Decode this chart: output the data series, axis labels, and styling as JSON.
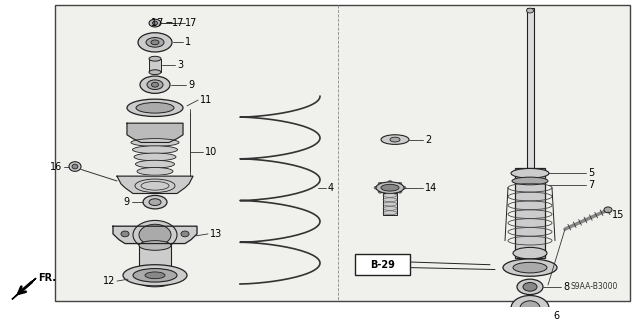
{
  "bg_color": "#ffffff",
  "border_color": "#444444",
  "diagram_bg": "#f0f0ec",
  "dark": "#222222",
  "gray1": "#cccccc",
  "gray2": "#aaaaaa",
  "gray3": "#888888",
  "label_fontsize": 7,
  "ref_code": "S9AA-B3000",
  "page_ref": "B-29",
  "direction_label": "FR."
}
